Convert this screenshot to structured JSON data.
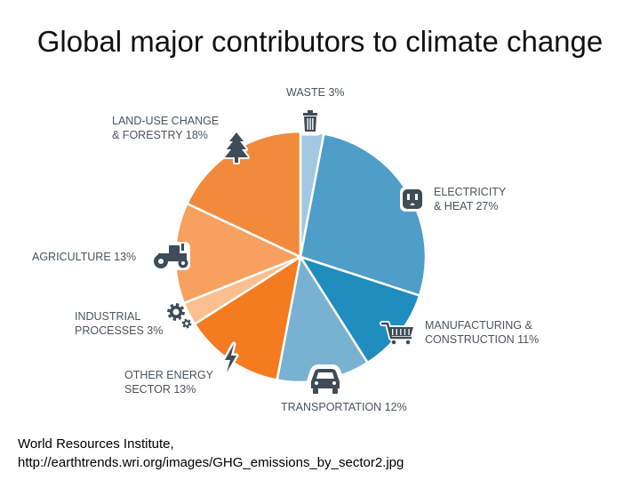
{
  "slide": {
    "title": "Global major contributors to climate change",
    "source_line1": "World Resources Institute,",
    "source_line2": "http://earthtrends.wri.org/images/GHG_emissions_by_sector2.jpg"
  },
  "chart_data": {
    "type": "pie",
    "title": "",
    "unit": "%",
    "slices": [
      {
        "id": "waste",
        "lines": [
          "WASTE 3%"
        ],
        "value": 3,
        "color": "#a4c8e1",
        "icon": "trash-can-icon"
      },
      {
        "id": "electricity",
        "lines": [
          "ELECTRICITY",
          "& HEAT 27%"
        ],
        "value": 27,
        "color": "#4f9ec9",
        "icon": "power-outlet-icon"
      },
      {
        "id": "manufacturing",
        "lines": [
          "MANUFACTURING &",
          "CONSTRUCTION 11%"
        ],
        "value": 11,
        "color": "#1f8dbe",
        "icon": "shopping-cart-icon"
      },
      {
        "id": "transportation",
        "lines": [
          "TRANSPORTATION 12%"
        ],
        "value": 12,
        "color": "#79b1d2",
        "icon": "car-icon"
      },
      {
        "id": "other-energy",
        "lines": [
          "OTHER ENERGY",
          "SECTOR 13%"
        ],
        "value": 13,
        "color": "#f47b20",
        "icon": "lightning-bolt-icon"
      },
      {
        "id": "industrial",
        "lines": [
          "INDUSTRIAL",
          "PROCESSES 3%"
        ],
        "value": 3,
        "color": "#fbbf8d",
        "icon": "gears-icon"
      },
      {
        "id": "agriculture",
        "lines": [
          "AGRICULTURE 13%"
        ],
        "value": 13,
        "color": "#f7a05f",
        "icon": "tractor-icon"
      },
      {
        "id": "land-use",
        "lines": [
          "LAND-USE CHANGE",
          "& FORESTRY 18%"
        ],
        "value": 18,
        "color": "#f28a3c",
        "icon": "pine-tree-icon"
      }
    ]
  }
}
